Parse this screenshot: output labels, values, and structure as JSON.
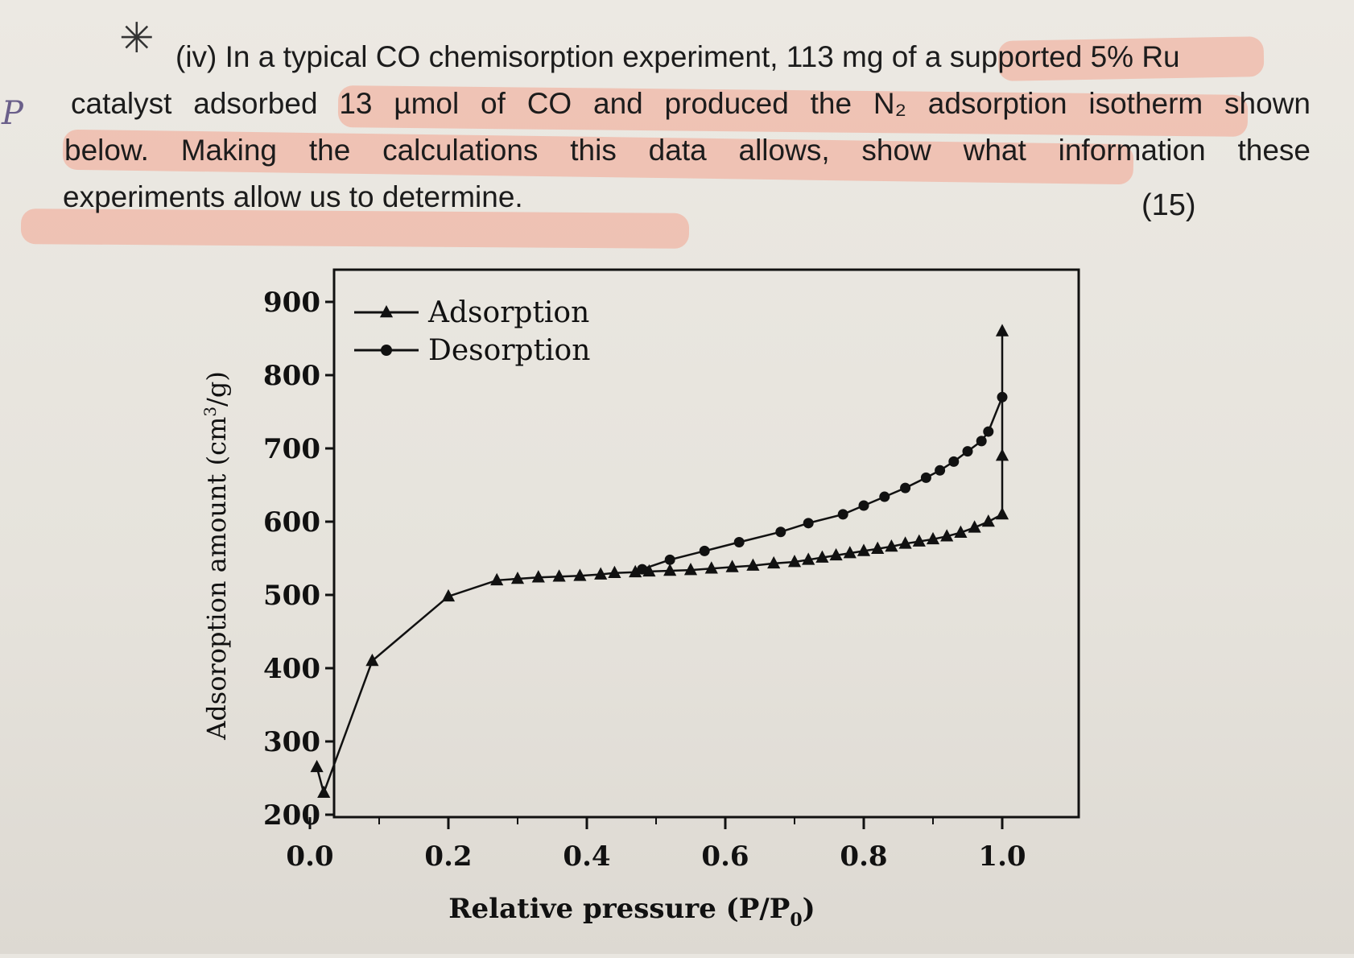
{
  "question": {
    "label": "(iv)",
    "line1": "In a typical CO chemisorption experiment, 113 mg of a supported 5% Ru",
    "line2": "catalyst adsorbed 13 µmol of CO and produced the N₂ adsorption isotherm shown",
    "line3": "below. Making the calculations this data allows, show what information these",
    "line4": "experiments allow us to determine.",
    "marks": "(15)"
  },
  "margin_note": "P",
  "colors": {
    "highlight": "#f2a48f",
    "ink": "#1c1c1c",
    "paper": "#e9e6e0"
  },
  "chart_data": {
    "type": "line",
    "xlabel": "Relative pressure (P/P",
    "xlabel_subscript": "0",
    "xlabel_close": ")",
    "ylabel": "Adsoroption amount (cm",
    "ylabel_sup": "3",
    "ylabel_close": "/g)",
    "xlim": [
      0.0,
      1.1
    ],
    "ylim": [
      200,
      900
    ],
    "xticks": [
      "0.0",
      "0.2",
      "0.4",
      "0.6",
      "0.8",
      "1.0"
    ],
    "xtick_values": [
      0.0,
      0.2,
      0.4,
      0.6,
      0.8,
      1.0
    ],
    "yticks": [
      "200",
      "300",
      "400",
      "500",
      "600",
      "700",
      "800",
      "900"
    ],
    "ytick_values": [
      200,
      300,
      400,
      500,
      600,
      700,
      800,
      900
    ],
    "legend_position": "top-left",
    "grid": false,
    "series": [
      {
        "name": "Adsorption",
        "marker": "triangle",
        "x": [
          0.01,
          0.02,
          0.09,
          0.2,
          0.27,
          0.3,
          0.33,
          0.36,
          0.39,
          0.42,
          0.44,
          0.47,
          0.49,
          0.52,
          0.55,
          0.58,
          0.61,
          0.64,
          0.67,
          0.7,
          0.72,
          0.74,
          0.76,
          0.78,
          0.8,
          0.82,
          0.84,
          0.86,
          0.88,
          0.9,
          0.92,
          0.94,
          0.96,
          0.98,
          1.0,
          1.0,
          1.0
        ],
        "y": [
          265,
          230,
          410,
          498,
          520,
          522,
          524,
          525,
          526,
          528,
          530,
          531,
          532,
          533,
          534,
          536,
          538,
          540,
          543,
          545,
          548,
          551,
          554,
          557,
          560,
          563,
          566,
          570,
          573,
          576,
          580,
          585,
          592,
          600,
          610,
          690,
          860
        ]
      },
      {
        "name": "Desorption",
        "marker": "circle",
        "x": [
          0.48,
          0.52,
          0.57,
          0.62,
          0.68,
          0.72,
          0.77,
          0.8,
          0.83,
          0.86,
          0.89,
          0.91,
          0.93,
          0.95,
          0.97,
          0.98,
          1.0
        ],
        "y": [
          535,
          548,
          560,
          572,
          586,
          598,
          610,
          622,
          634,
          646,
          660,
          670,
          682,
          696,
          710,
          723,
          770
        ]
      }
    ]
  }
}
